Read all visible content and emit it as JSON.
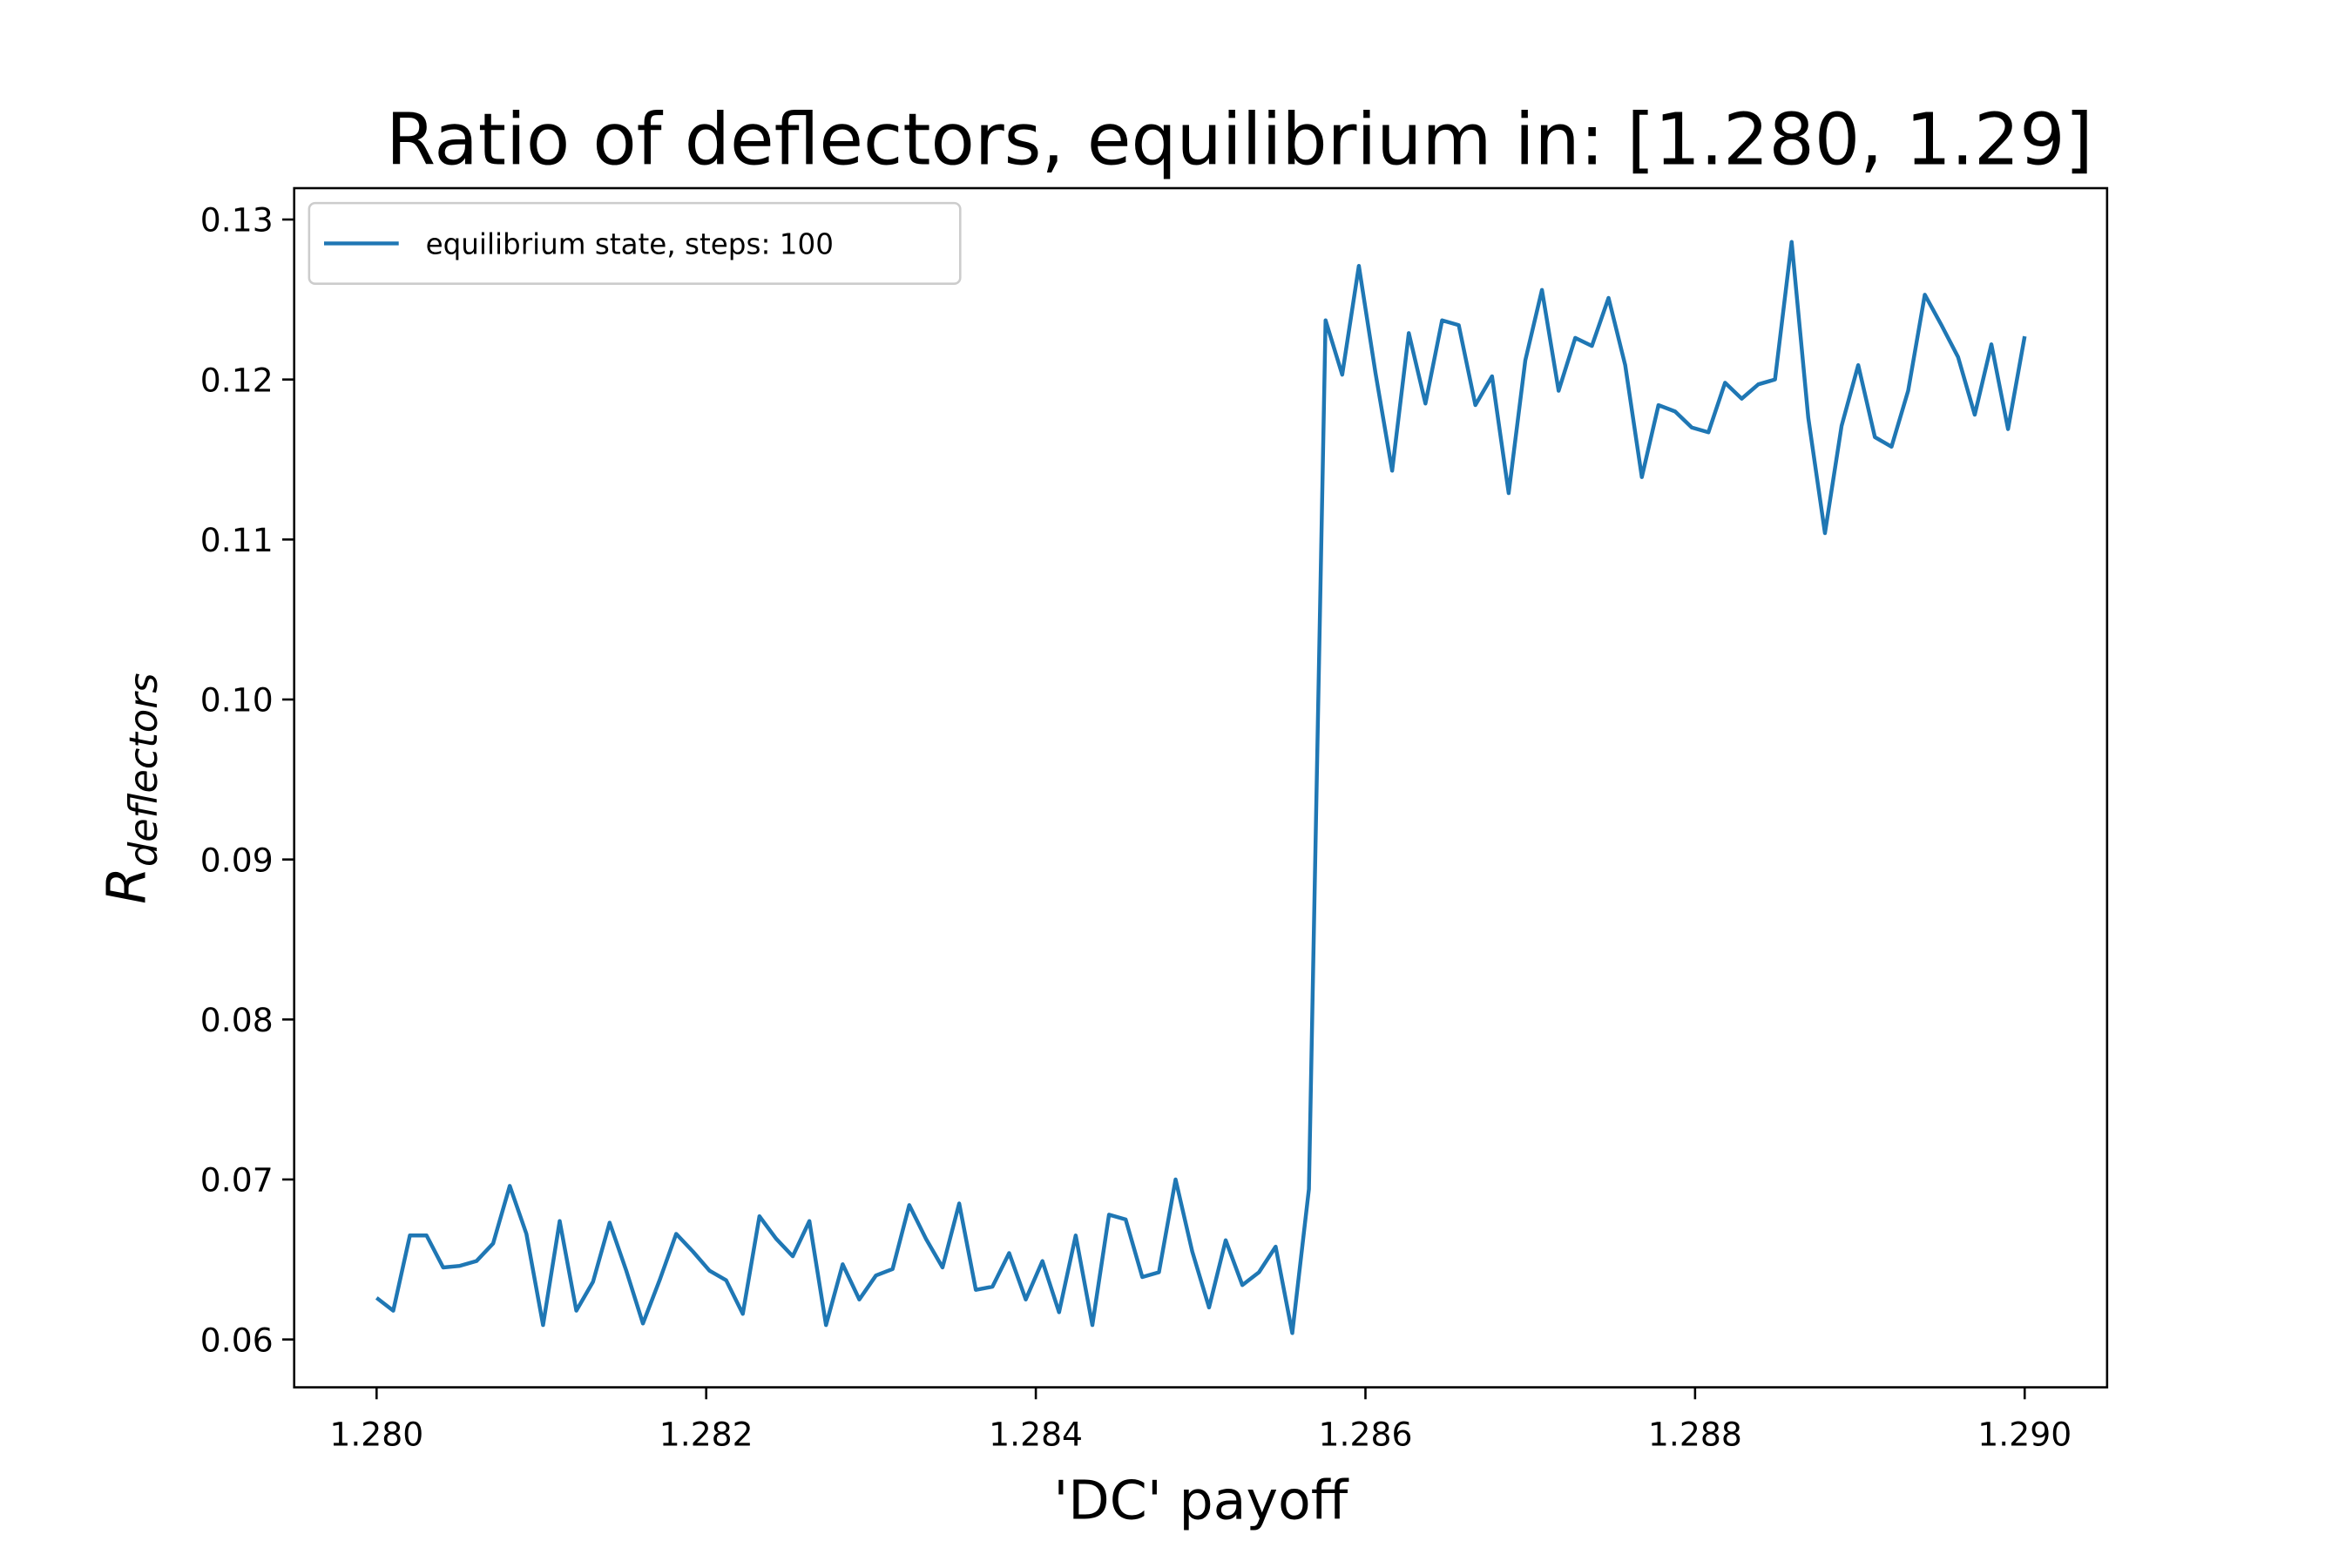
{
  "chart_data": {
    "type": "line",
    "title": "Ratio of deflectors, equilibrium in: [1.280, 1.29]",
    "xlabel": "'DC' payoff",
    "ylabel": "R",
    "ylabel_subscript": "deflectors",
    "legend": "upper left",
    "x": [
      1.28,
      1.280101,
      1.280202,
      1.280303,
      1.280404,
      1.280505,
      1.280606,
      1.280707,
      1.280808,
      1.280909,
      1.28101,
      1.281111,
      1.281212,
      1.281313,
      1.281414,
      1.281515,
      1.281616,
      1.281717,
      1.281818,
      1.281919,
      1.28202,
      1.282121,
      1.282222,
      1.282323,
      1.282424,
      1.282525,
      1.282626,
      1.282727,
      1.282828,
      1.282929,
      1.28303,
      1.283131,
      1.283232,
      1.283333,
      1.283434,
      1.283535,
      1.283636,
      1.283737,
      1.283838,
      1.283939,
      1.28404,
      1.284141,
      1.284242,
      1.284343,
      1.284444,
      1.284545,
      1.284646,
      1.284747,
      1.284848,
      1.284949,
      1.285051,
      1.285152,
      1.285253,
      1.285354,
      1.285455,
      1.285556,
      1.285657,
      1.285758,
      1.285859,
      1.28596,
      1.286061,
      1.286162,
      1.286263,
      1.286364,
      1.286465,
      1.286566,
      1.286667,
      1.286768,
      1.286869,
      1.28697,
      1.287071,
      1.287172,
      1.287273,
      1.287374,
      1.287475,
      1.287576,
      1.287677,
      1.287778,
      1.287879,
      1.28798,
      1.288081,
      1.288182,
      1.288283,
      1.288384,
      1.288485,
      1.288586,
      1.288687,
      1.288788,
      1.288889,
      1.28899,
      1.289091,
      1.289192,
      1.289293,
      1.289394,
      1.289495,
      1.289596,
      1.289697,
      1.289798,
      1.289899,
      1.29
    ],
    "series": [
      {
        "name": "equilibrium state, steps: 100",
        "color": "#1f77b4",
        "values": [
          0.0626,
          0.0618,
          0.0665,
          0.0665,
          0.0645,
          0.0646,
          0.0649,
          0.066,
          0.0696,
          0.0666,
          0.0609,
          0.0674,
          0.0618,
          0.0636,
          0.0673,
          0.0643,
          0.061,
          0.0637,
          0.0666,
          0.0655,
          0.0643,
          0.0637,
          0.0616,
          0.0677,
          0.0663,
          0.0652,
          0.0674,
          0.0609,
          0.0647,
          0.0625,
          0.064,
          0.0644,
          0.0684,
          0.0663,
          0.0645,
          0.0685,
          0.0631,
          0.0633,
          0.0654,
          0.0625,
          0.0649,
          0.0617,
          0.0665,
          0.0609,
          0.0678,
          0.0675,
          0.0639,
          0.0642,
          0.07,
          0.0655,
          0.062,
          0.0662,
          0.0634,
          0.0642,
          0.0658,
          0.0604,
          0.0694,
          0.1237,
          0.1203,
          0.1271,
          0.1204,
          0.1143,
          0.1229,
          0.1185,
          0.1237,
          0.1234,
          0.1184,
          0.1202,
          0.1129,
          0.1212,
          0.1256,
          0.1193,
          0.1226,
          0.1221,
          0.1251,
          0.1209,
          0.1139,
          0.1184,
          0.118,
          0.117,
          0.1167,
          0.1198,
          0.1188,
          0.1197,
          0.12,
          0.1286,
          0.1176,
          0.1104,
          0.1171,
          0.1209,
          0.1164,
          0.1158,
          0.1193,
          0.1253,
          0.1234,
          0.1214,
          0.1178,
          0.1222,
          0.1169,
          0.1227
        ]
      }
    ],
    "xlim": [
      1.2795,
      1.2905
    ],
    "xticks": [
      {
        "value": 1.28,
        "label": "1.280"
      },
      1.282,
      1.284,
      1.286,
      1.288,
      {
        "value": 1.29,
        "label": "1.290"
      }
    ],
    "ylim": [
      0.05701,
      0.13196
    ],
    "yticks": [
      0.06,
      0.07,
      0.08,
      0.09,
      {
        "value": 0.1,
        "label": "0.10"
      },
      0.11,
      0.12,
      0.13
    ]
  }
}
